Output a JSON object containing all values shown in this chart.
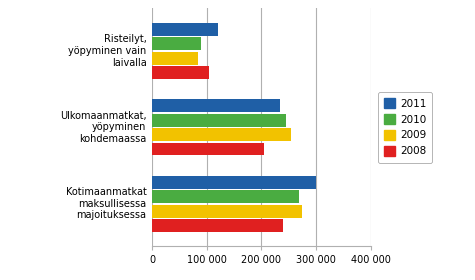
{
  "categories": [
    "Kotimaanmatkat\nmaksullisessa\nmajoituksessa",
    "Ulkomaanmatkat,\nyöpyminen\nkohdemaassa",
    "Risteilyt,\nyöpyminen vain\nlaivalla"
  ],
  "series": {
    "2011": [
      300000,
      235000,
      120000
    ],
    "2010": [
      270000,
      245000,
      90000
    ],
    "2009": [
      275000,
      255000,
      85000
    ],
    "2008": [
      240000,
      205000,
      105000
    ]
  },
  "colors": {
    "2011": "#1F5FA6",
    "2010": "#4AAC41",
    "2009": "#F2C200",
    "2008": "#E02020"
  },
  "years_order": [
    "2011",
    "2010",
    "2009",
    "2008"
  ],
  "xlim": [
    0,
    400000
  ],
  "xticks": [
    0,
    100000,
    200000,
    300000,
    400000
  ],
  "xtick_labels": [
    "0",
    "100 000",
    "200 000",
    "300 000",
    "400 000"
  ],
  "background_color": "#ffffff",
  "grid_color": "#b0b0b0"
}
